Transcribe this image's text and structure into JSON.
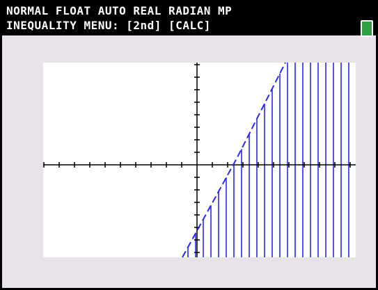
{
  "status_bar": {
    "mode_line": "NORMAL FLOAT AUTO REAL RADIAN MP",
    "menu_hint": "INEQUALITY MENU: [2nd] [CALC]"
  }
}
